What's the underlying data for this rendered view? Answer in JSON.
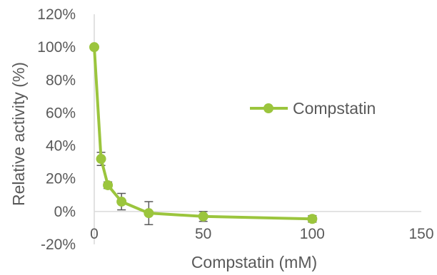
{
  "chart_data": {
    "type": "scatter",
    "title": "",
    "xlabel": "Compstatin (mM)",
    "ylabel": "Relative activity (%)",
    "xlim": [
      0,
      150
    ],
    "ylim": [
      -20,
      120
    ],
    "x_ticks": [
      "0",
      "50",
      "100",
      "150"
    ],
    "y_ticks": [
      "-20%",
      "0%",
      "20%",
      "40%",
      "60%",
      "80%",
      "100%",
      "120%"
    ],
    "grid": false,
    "legend_position": "right",
    "series_color": "#9BC53D",
    "errorbar_color": "#595959",
    "series": [
      {
        "name": "Compstatin",
        "x": [
          0,
          3.125,
          6.25,
          12.5,
          25,
          50,
          100
        ],
        "y": [
          100,
          32,
          16,
          6,
          -1,
          -3,
          -4.5
        ],
        "error": [
          0,
          4,
          2,
          5,
          7,
          3,
          2
        ]
      }
    ]
  }
}
